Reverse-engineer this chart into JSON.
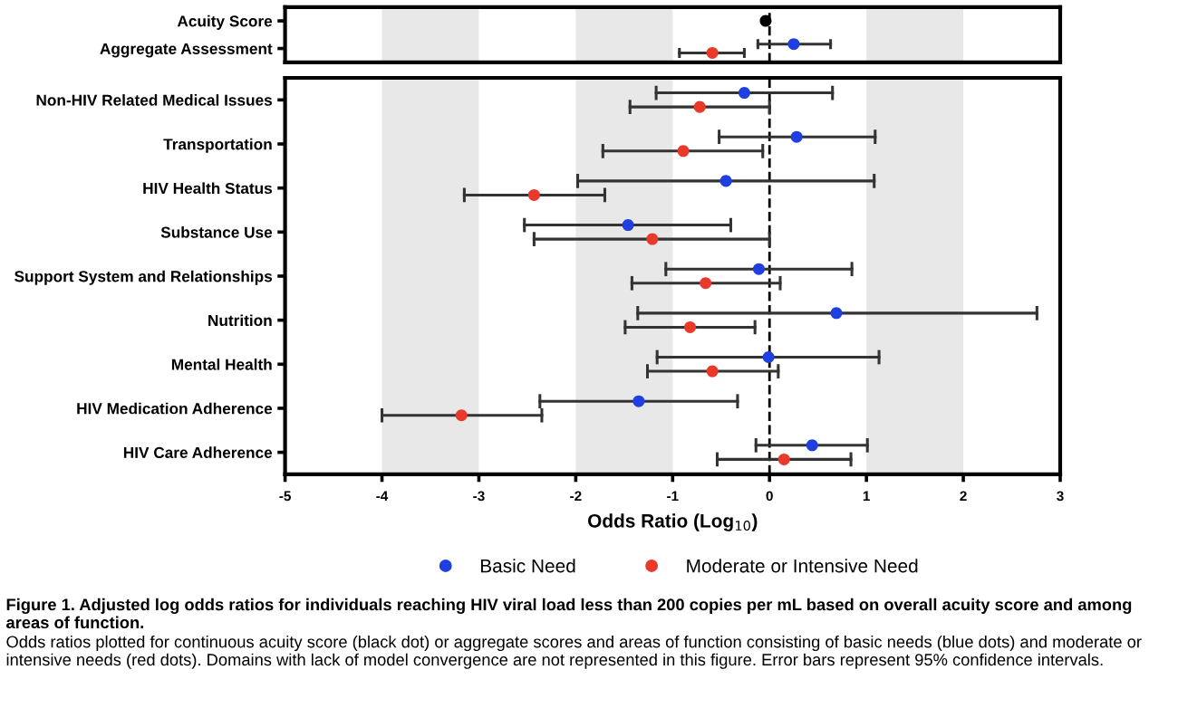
{
  "chart_data": [
    {
      "type": "scatter",
      "orientation": "horizontal",
      "categories": [
        "Acuity Score",
        "Aggregate Assessment"
      ],
      "series": [
        {
          "color": "#000000",
          "values": [
            -0.04,
            null
          ],
          "errors": [
            null,
            null
          ]
        },
        {
          "color": "#1f3fe0",
          "values": [
            null,
            0.25
          ],
          "errors": [
            null,
            [
              -0.12,
              0.63
            ]
          ]
        },
        {
          "color": "#e8392a",
          "values": [
            null,
            -0.59
          ],
          "errors": [
            null,
            [
              -0.93,
              -0.26
            ]
          ]
        }
      ],
      "xlim": [
        -5,
        3
      ],
      "tick_labels": "y",
      "marker": "circle",
      "bands": [
        {
          "axis": "x",
          "from": -4,
          "to": -3,
          "color": "#e8e8e8"
        },
        {
          "axis": "x",
          "from": -2,
          "to": -1,
          "color": "#e8e8e8"
        },
        {
          "axis": "x",
          "from": 1,
          "to": 2,
          "color": "#e8e8e8"
        }
      ],
      "ref_lines": [
        {
          "axis": "x",
          "value": 0,
          "line_style": "dashed",
          "color": "#000000"
        }
      ]
    },
    {
      "type": "scatter",
      "orientation": "horizontal",
      "categories": [
        "Non-HIV Related Medical Issues",
        "Transportation",
        "HIV Health Status",
        "Substance Use",
        "Support System and Relationships",
        "Nutrition",
        "Mental Health",
        "HIV Medication Adherence",
        "HIV Care Adherence"
      ],
      "series": [
        {
          "name": "Basic Need",
          "color": "#1f3fe0",
          "values": [
            -0.26,
            0.28,
            -0.45,
            -1.46,
            -0.11,
            0.69,
            -0.01,
            -1.35,
            0.44
          ],
          "errors": [
            [
              -1.17,
              0.65
            ],
            [
              -0.52,
              1.09
            ],
            [
              -1.98,
              1.08
            ],
            [
              -2.53,
              -0.4
            ],
            [
              -1.07,
              0.85
            ],
            [
              -1.36,
              2.76
            ],
            [
              -1.16,
              1.13
            ],
            [
              -2.37,
              -0.33
            ],
            [
              -0.14,
              1.01
            ]
          ]
        },
        {
          "name": "Moderate or Intensive Need",
          "color": "#e8392a",
          "values": [
            -0.72,
            -0.89,
            -2.43,
            -1.21,
            -0.66,
            -0.82,
            -0.59,
            -3.18,
            0.15
          ],
          "errors": [
            [
              -1.44,
              0
            ],
            [
              -1.72,
              -0.07
            ],
            [
              -3.15,
              -1.7
            ],
            [
              -2.43,
              0
            ],
            [
              -1.42,
              0.11
            ],
            [
              -1.49,
              -0.15
            ],
            [
              -1.26,
              0.09
            ],
            [
              -4.0,
              -2.35
            ],
            [
              -0.54,
              0.84
            ]
          ]
        }
      ],
      "xlim": [
        -5,
        3
      ],
      "xticks": [
        -5,
        -4,
        -3,
        -2,
        -1,
        0,
        1,
        2,
        3
      ],
      "xlabel": "Odds Ratio (Log$_{10}$)",
      "marker": "circle",
      "legend": "bottom",
      "bands": [
        {
          "axis": "x",
          "from": -4,
          "to": -3,
          "color": "#e8e8e8"
        },
        {
          "axis": "x",
          "from": -2,
          "to": -1,
          "color": "#e8e8e8"
        },
        {
          "axis": "x",
          "from": 1,
          "to": 2,
          "color": "#e8e8e8"
        }
      ],
      "ref_lines": [
        {
          "axis": "x",
          "value": 0,
          "line_style": "dashed",
          "color": "#000000"
        }
      ],
      "annotations": [
        "Figure 1. Adjusted log odds ratios for individuals reaching HIV viral load less than 200 copies per mL based on overall acuity score and among areas of function.",
        "Odds ratios plotted for continuous acuity score (black dot) or aggregate scores and areas of function consisting of basic needs (blue dots) and moderate or intensive needs (red dots). Domains with lack of model convergence are not represented in this figure. Error bars represent 95% confidence intervals."
      ]
    }
  ]
}
